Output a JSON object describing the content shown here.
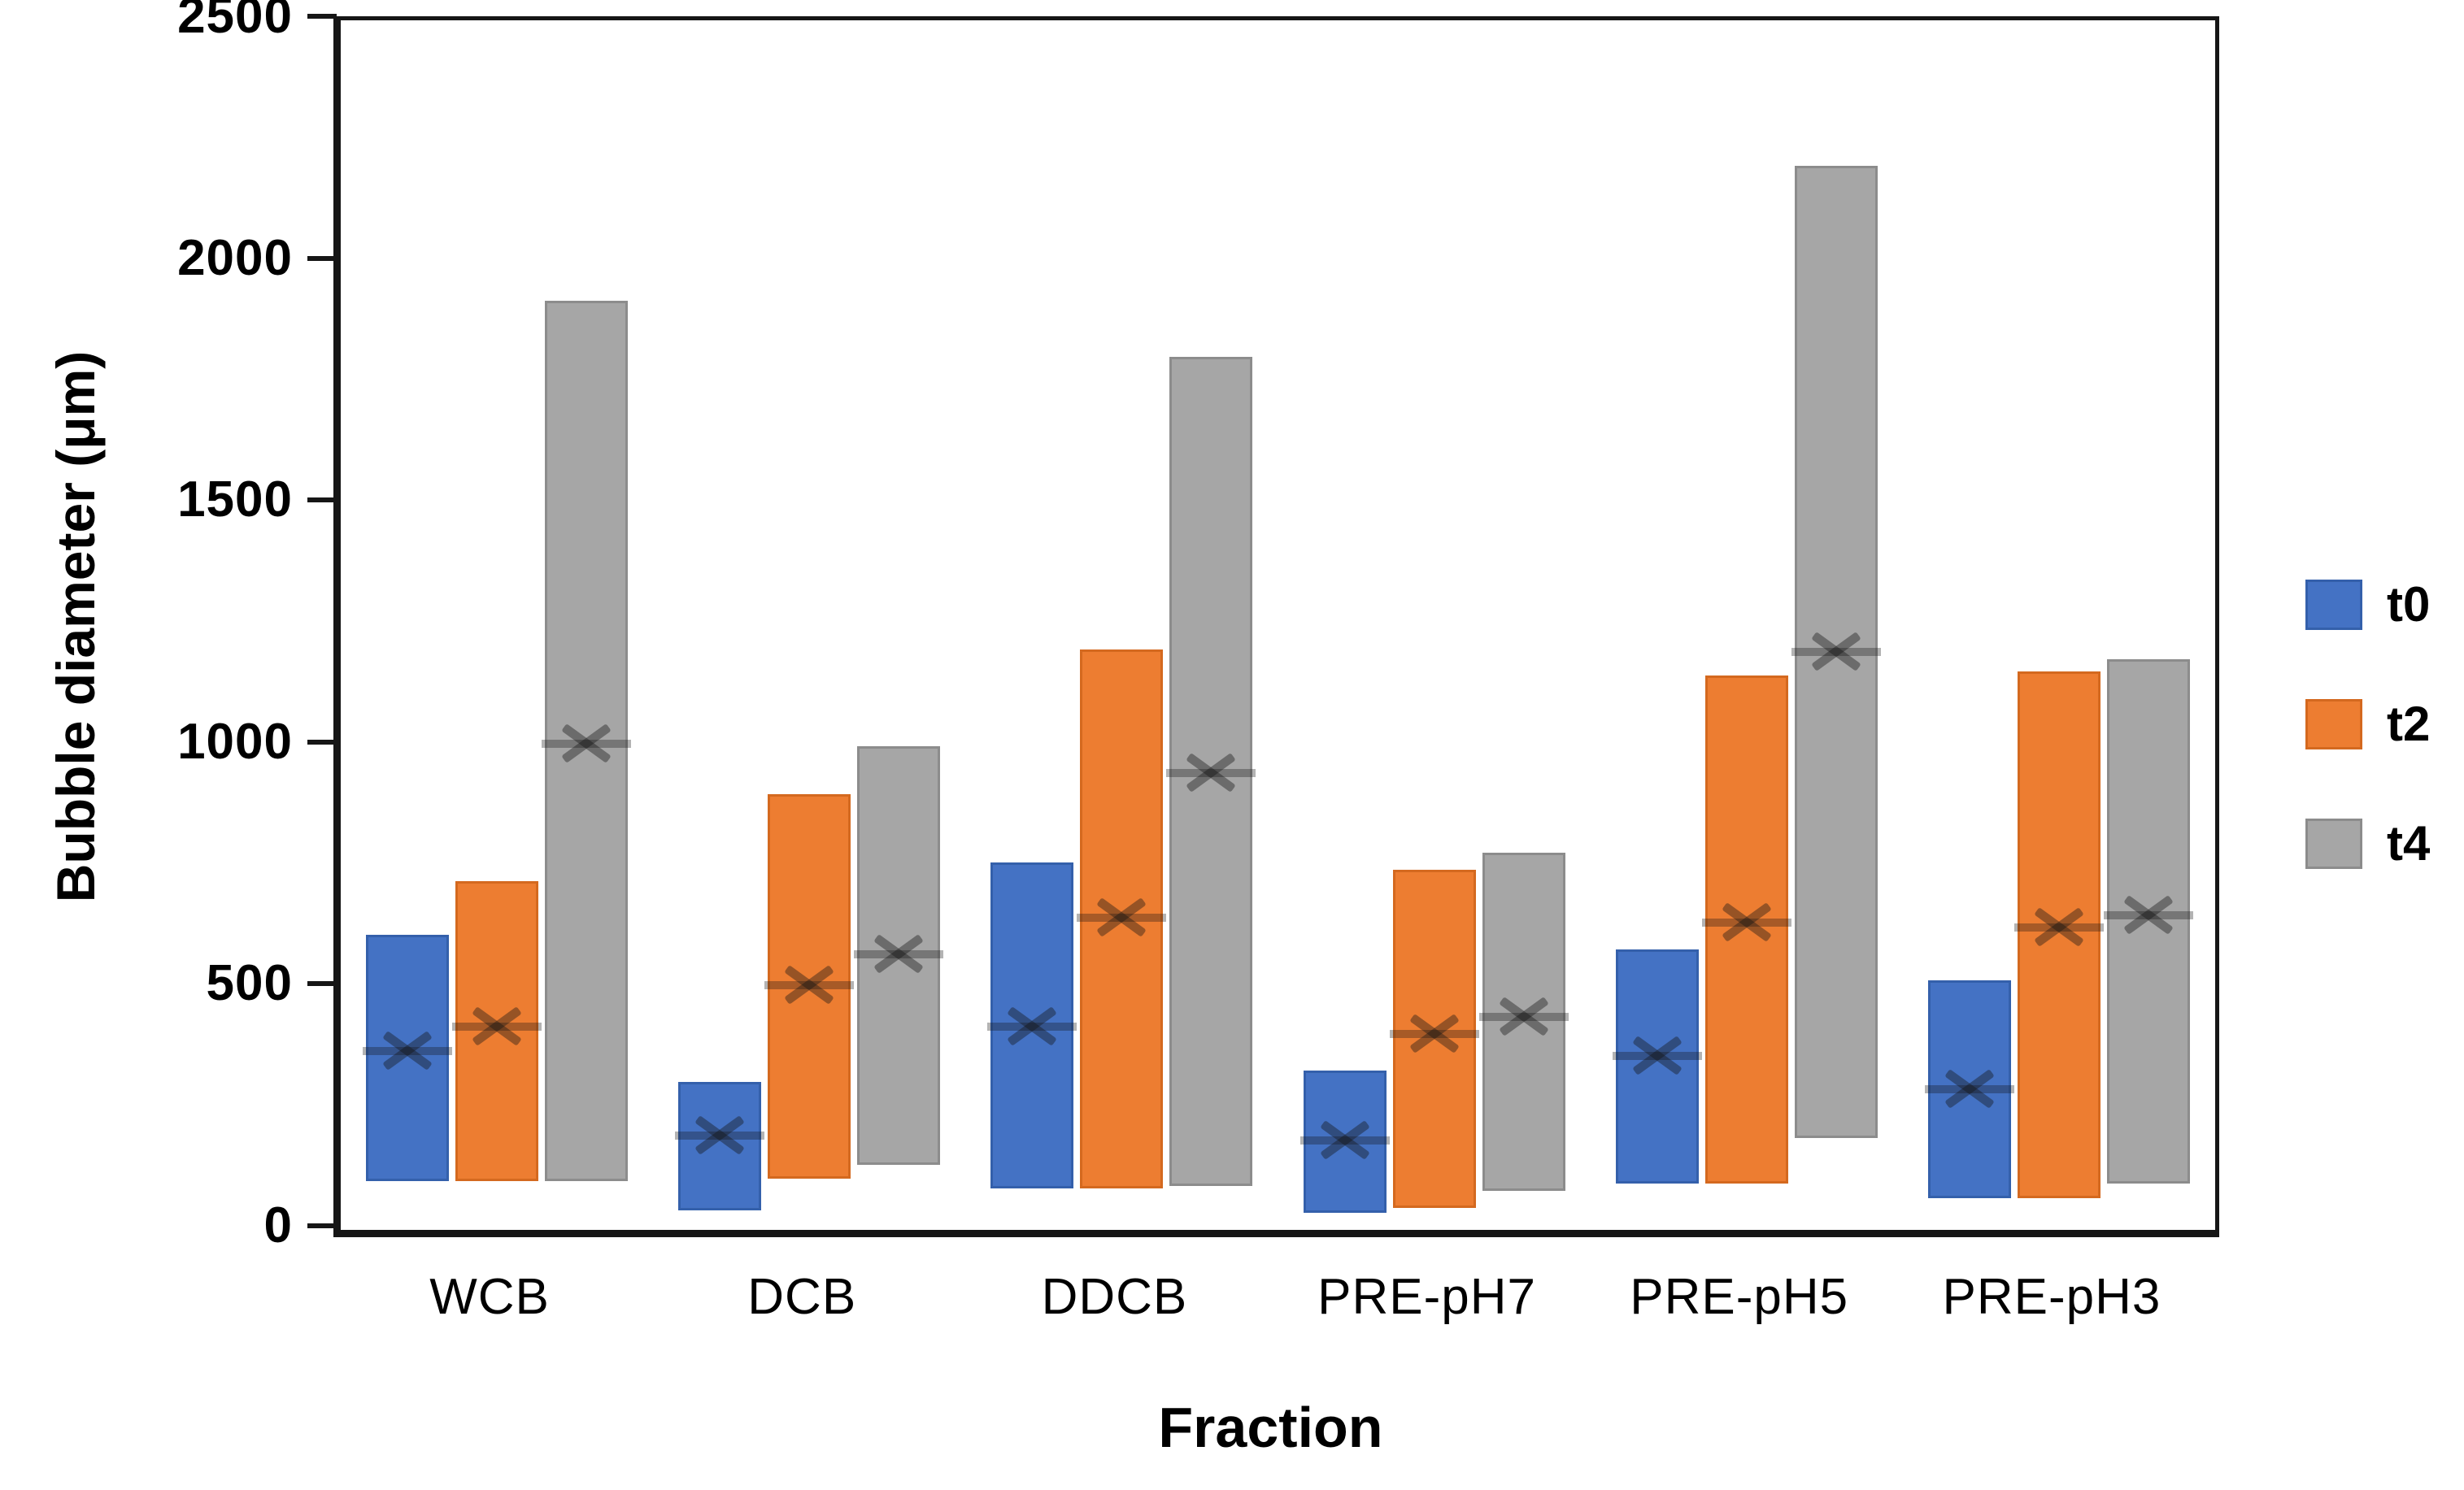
{
  "chart_data": {
    "type": "bar",
    "subtype": "floating-range-bars-with-mean-marker",
    "title": "",
    "xlabel": "Fraction",
    "ylabel": "Bubble diameter (μm)",
    "ylim": [
      0,
      2500
    ],
    "yticks": [
      0,
      500,
      1000,
      1500,
      2000,
      2500
    ],
    "ytick_labels": [
      "0",
      "500",
      "1000",
      "1500",
      "2000",
      "2500"
    ],
    "grid": false,
    "legend_position": "right-outside",
    "categories": [
      "WCB",
      "DCB",
      "DDCB",
      "PRE-pH7",
      "PRE-pH5",
      "PRE-pH3"
    ],
    "series": [
      {
        "name": "t0",
        "color": "#4472C4",
        "border_color": "#3460AB",
        "ranges_min_max_um": [
          [
            100,
            610
          ],
          [
            40,
            305
          ],
          [
            85,
            760
          ],
          [
            35,
            330
          ],
          [
            95,
            580
          ],
          [
            65,
            515
          ]
        ],
        "mean_markers_um": [
          370,
          195,
          420,
          185,
          360,
          290
        ]
      },
      {
        "name": "t2",
        "color": "#ED7D31",
        "border_color": "#D4691F",
        "ranges_min_max_um": [
          [
            100,
            720
          ],
          [
            105,
            900
          ],
          [
            85,
            1200
          ],
          [
            45,
            745
          ],
          [
            95,
            1145
          ],
          [
            65,
            1155
          ]
        ],
        "mean_markers_um": [
          420,
          505,
          645,
          405,
          635,
          625
        ]
      },
      {
        "name": "t4",
        "color": "#A6A6A6",
        "border_color": "#8C8C8C",
        "ranges_min_max_um": [
          [
            100,
            1920
          ],
          [
            135,
            1000
          ],
          [
            90,
            1805
          ],
          [
            80,
            780
          ],
          [
            190,
            2200
          ],
          [
            95,
            1180
          ]
        ],
        "mean_markers_um": [
          1005,
          570,
          945,
          440,
          1195,
          650
        ]
      }
    ],
    "marker_glyph": "x-cross-with-horizontal-median-line",
    "axis_color": "#161616",
    "background_color": "#ffffff"
  }
}
